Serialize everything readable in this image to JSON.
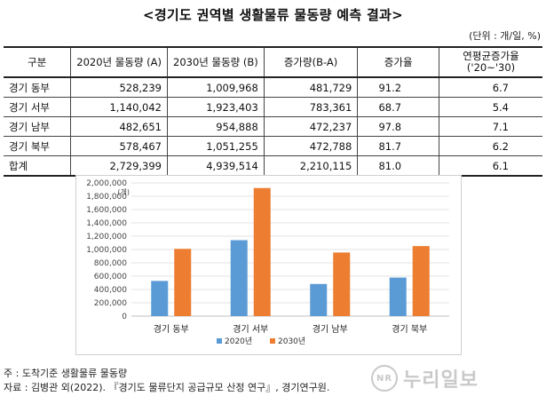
{
  "title": "<경기도 권역별 생활물류 물동량 예측 결과>",
  "unit_note": "(단위 : 개/일, %)",
  "table": {
    "headers": [
      "구분",
      "2020년 물동량 (A)",
      "2030년 물동량 (B)",
      "증가량(B-A)",
      "증가율",
      "연평균증가율",
      "('20~'30)"
    ],
    "rows": [
      [
        "경기 동부",
        "528,239",
        "1,009,968",
        "481,729",
        "91.2",
        "6.7"
      ],
      [
        "경기 서부",
        "1,140,042",
        "1,923,403",
        "783,361",
        "68.7",
        "5.4"
      ],
      [
        "경기 남부",
        "482,651",
        "954,888",
        "472,237",
        "97.8",
        "7.1"
      ],
      [
        "경기 북부",
        "578,467",
        "1,051,255",
        "472,788",
        "81.7",
        "6.2"
      ],
      [
        "합계",
        "2,729,399",
        "4,939,514",
        "2,210,115",
        "81.0",
        "6.1"
      ]
    ]
  },
  "chart_data": {
    "type": "bar",
    "categories": [
      "경기 동부",
      "경기 서부",
      "경기 남부",
      "경기 북부"
    ],
    "series": [
      {
        "name": "2020년",
        "values": [
          528239,
          1140042,
          482651,
          578467
        ],
        "color": "#5b9bd5"
      },
      {
        "name": "2030년",
        "values": [
          1009968,
          1923403,
          954888,
          1051255
        ],
        "color": "#ed7d31"
      }
    ],
    "ylim": [
      0,
      2000000
    ],
    "yticks": [
      "0",
      "200,000",
      "400,000",
      "600,000",
      "800,000",
      "1,000,000",
      "1,200,000",
      "1,400,000",
      "1,600,000",
      "1,800,000",
      "2,000,000"
    ],
    "ylabel": "(개)",
    "grid": true,
    "legend": "bottom"
  },
  "notes": {
    "line1": "주 : 도착기준 생활물류 물동량",
    "line2": "자료 : 김병관 외(2022). 『경기도 물류단지 공급규모 산정 연구』, 경기연구원."
  },
  "watermark": {
    "mark": "NR",
    "text": "누리일보"
  }
}
